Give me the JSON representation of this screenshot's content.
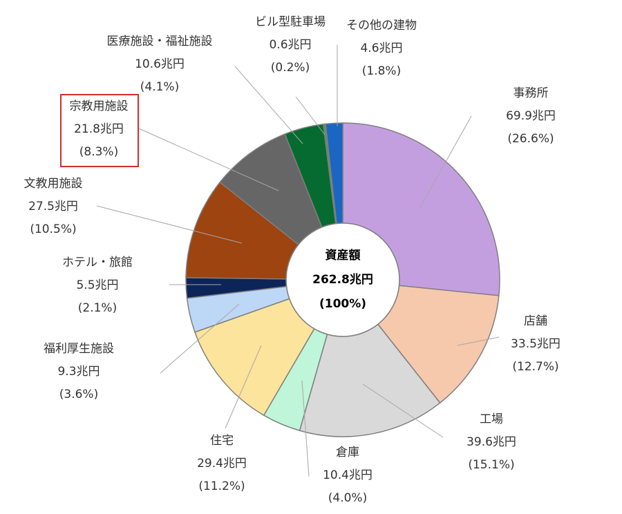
{
  "chart_data": {
    "type": "pie",
    "style": "donut",
    "center_label": {
      "title": "資産額",
      "value": "262.8兆円",
      "percent": "(100%)"
    },
    "slices": [
      {
        "name": "事務所",
        "value": 69.9,
        "value_label": "69.9兆円",
        "percent_label": "(26.6%)",
        "color": "#C49FE0"
      },
      {
        "name": "店舗",
        "value": 33.5,
        "value_label": "33.5兆円",
        "percent_label": "(12.7%)",
        "color": "#F6C9AC"
      },
      {
        "name": "工場",
        "value": 39.6,
        "value_label": "39.6兆円",
        "percent_label": "(15.1%)",
        "color": "#D9D9D9"
      },
      {
        "name": "倉庫",
        "value": 10.4,
        "value_label": "10.4兆円",
        "percent_label": "(4.0%)",
        "color": "#BFF5D8"
      },
      {
        "name": "住宅",
        "value": 29.4,
        "value_label": "29.4兆円",
        "percent_label": "(11.2%)",
        "color": "#FDE49C"
      },
      {
        "name": "福利厚生施設",
        "value": 9.3,
        "value_label": "9.3兆円",
        "percent_label": "(3.6%)",
        "color": "#BDD7F7"
      },
      {
        "name": "ホテル・旅館",
        "value": 5.5,
        "value_label": "5.5兆円",
        "percent_label": "(2.1%)",
        "color": "#0C2458"
      },
      {
        "name": "文教用施設",
        "value": 27.5,
        "value_label": "27.5兆円",
        "percent_label": "(10.5%)",
        "color": "#9D4410"
      },
      {
        "name": "宗教用施設",
        "value": 21.8,
        "value_label": "21.8兆円",
        "percent_label": "(8.3%)",
        "color": "#666666",
        "highlighted": true
      },
      {
        "name": "医療施設・福祉施設",
        "value": 10.6,
        "value_label": "10.6兆円",
        "percent_label": "(4.1%)",
        "color": "#066B30"
      },
      {
        "name": "ビル型駐車場",
        "value": 0.6,
        "value_label": "0.6兆円",
        "percent_label": "(0.2%)",
        "color": "#5E8F5A"
      },
      {
        "name": "その他の建物",
        "value": 4.6,
        "value_label": "4.6兆円",
        "percent_label": "(1.8%)",
        "color": "#1A66C2"
      }
    ],
    "highlight_color": "#D0302A"
  }
}
